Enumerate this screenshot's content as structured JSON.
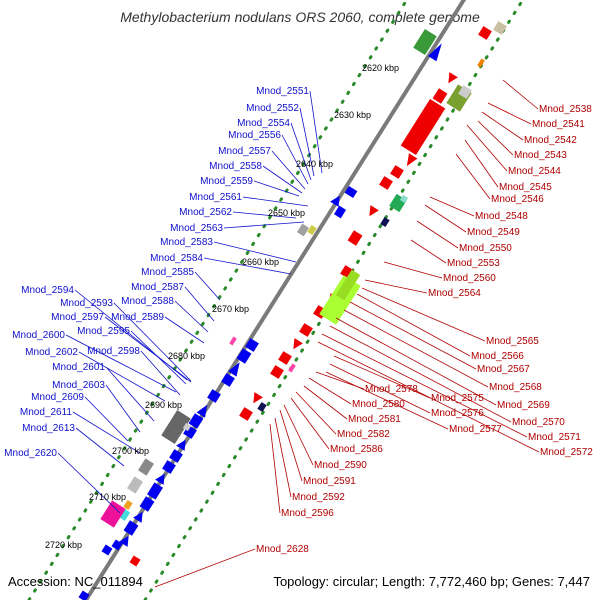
{
  "title": "Methylobacterium nodulans ORS 2060, complete genome",
  "accession": "Accession: NC_011894",
  "topology": "Topology: circular; Length: 7,772,460 bp; Genes: 7,447",
  "colors": {
    "backbone": "#7a7a7a",
    "forward_strand": "#0000ee",
    "reverse_strand": "#ee0000",
    "dotted_track": "#2a8a2a",
    "left_label": "#1010cc",
    "right_label": "#b00000"
  },
  "scale_ticks": [
    "2620 kbp",
    "2630 kbp",
    "2640 kbp",
    "2650 kbp",
    "2660 kbp",
    "2670 kbp",
    "2680 kbp",
    "2690 kbp",
    "2700 kbp",
    "2710 kbp",
    "2720 kbp"
  ],
  "left_labels": [
    "Mnod_2551",
    "Mnod_2552",
    "Mnod_2554",
    "Mnod_2556",
    "Mnod_2557",
    "Mnod_2558",
    "Mnod_2559",
    "Mnod_2561",
    "Mnod_2562",
    "Mnod_2563",
    "Mnod_2583",
    "Mnod_2584",
    "Mnod_2585",
    "Mnod_2587",
    "Mnod_2588",
    "Mnod_2589",
    "Mnod_2594",
    "Mnod_2593",
    "Mnod_2597",
    "Mnod_2595",
    "Mnod_2600",
    "Mnod_2598",
    "Mnod_2602",
    "Mnod_2601",
    "Mnod_2603",
    "Mnod_2609",
    "Mnod_2611",
    "Mnod_2613",
    "Mnod_2620"
  ],
  "right_labels": [
    "Mnod_2538",
    "Mnod_2541",
    "Mnod_2542",
    "Mnod_2543",
    "Mnod_2544",
    "Mnod_2545",
    "Mnod_2546",
    "Mnod_2548",
    "Mnod_2549",
    "Mnod_2550",
    "Mnod_2553",
    "Mnod_2560",
    "Mnod_2564",
    "Mnod_2565",
    "Mnod_2566",
    "Mnod_2567",
    "Mnod_2568",
    "Mnod_2569",
    "Mnod_2570",
    "Mnod_2571",
    "Mnod_2572",
    "Mnod_2575",
    "Mnod_2576",
    "Mnod_2577",
    "Mnod_2578",
    "Mnod_2580",
    "Mnod_2581",
    "Mnod_2582",
    "Mnod_2586",
    "Mnod_2590",
    "Mnod_2591",
    "Mnod_2592",
    "Mnod_2596",
    "Mnod_2628"
  ]
}
